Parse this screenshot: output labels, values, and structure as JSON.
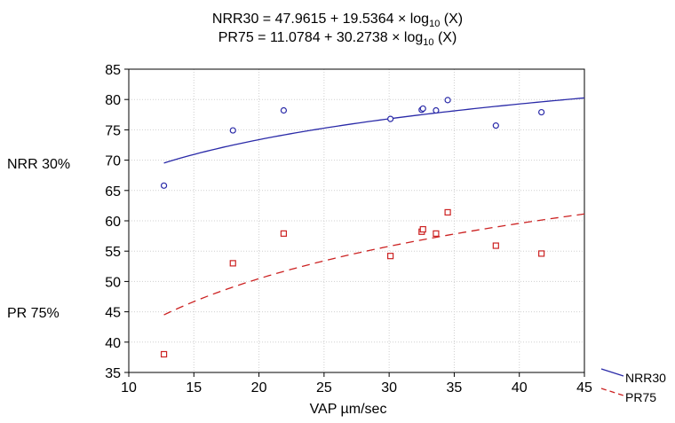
{
  "equations": {
    "nrr": {
      "lhs": "NRR30 = 47.9615 + 19.5364 × log",
      "sub": "10",
      "rhs": " (X)"
    },
    "pr": {
      "lhs": "PR75 = 11.0784 + 30.2738 × log",
      "sub": "10",
      "rhs": " (X)"
    }
  },
  "side_labels": {
    "nrr": "NRR 30%",
    "pr": "PR 75%"
  },
  "chart_data": {
    "type": "scatter",
    "title": "",
    "xlabel": "VAP µm/sec",
    "ylabel": "",
    "xlim": [
      10,
      45
    ],
    "ylim": [
      35,
      85
    ],
    "x_ticks": [
      10,
      15,
      20,
      25,
      30,
      35,
      40,
      45
    ],
    "y_ticks": [
      35,
      40,
      45,
      50,
      55,
      60,
      65,
      70,
      75,
      80,
      85
    ],
    "grid": true,
    "legend_position": "bottom-right, outside plot",
    "series": [
      {
        "name": "NRR30",
        "color": "#2a2aa8",
        "marker": "circle",
        "line_style": "solid",
        "fit": {
          "intercept": 47.9615,
          "slope": 19.5364,
          "form": "log10"
        },
        "points": [
          {
            "x": 12.7,
            "y": 65.8
          },
          {
            "x": 18.0,
            "y": 74.9
          },
          {
            "x": 21.9,
            "y": 78.2
          },
          {
            "x": 30.1,
            "y": 76.8
          },
          {
            "x": 32.5,
            "y": 78.3
          },
          {
            "x": 32.6,
            "y": 78.5
          },
          {
            "x": 33.6,
            "y": 78.2
          },
          {
            "x": 34.5,
            "y": 79.9
          },
          {
            "x": 38.2,
            "y": 75.7
          },
          {
            "x": 41.7,
            "y": 77.9
          }
        ]
      },
      {
        "name": "PR75",
        "color": "#cc2222",
        "marker": "square",
        "line_style": "dashed",
        "fit": {
          "intercept": 11.0784,
          "slope": 30.2738,
          "form": "log10"
        },
        "points": [
          {
            "x": 12.7,
            "y": 38.0
          },
          {
            "x": 18.0,
            "y": 53.0
          },
          {
            "x": 21.9,
            "y": 57.9
          },
          {
            "x": 30.1,
            "y": 54.2
          },
          {
            "x": 32.5,
            "y": 58.2
          },
          {
            "x": 32.6,
            "y": 58.6
          },
          {
            "x": 33.6,
            "y": 57.9
          },
          {
            "x": 34.5,
            "y": 61.4
          },
          {
            "x": 38.2,
            "y": 55.9
          },
          {
            "x": 41.7,
            "y": 54.6
          }
        ]
      }
    ]
  }
}
